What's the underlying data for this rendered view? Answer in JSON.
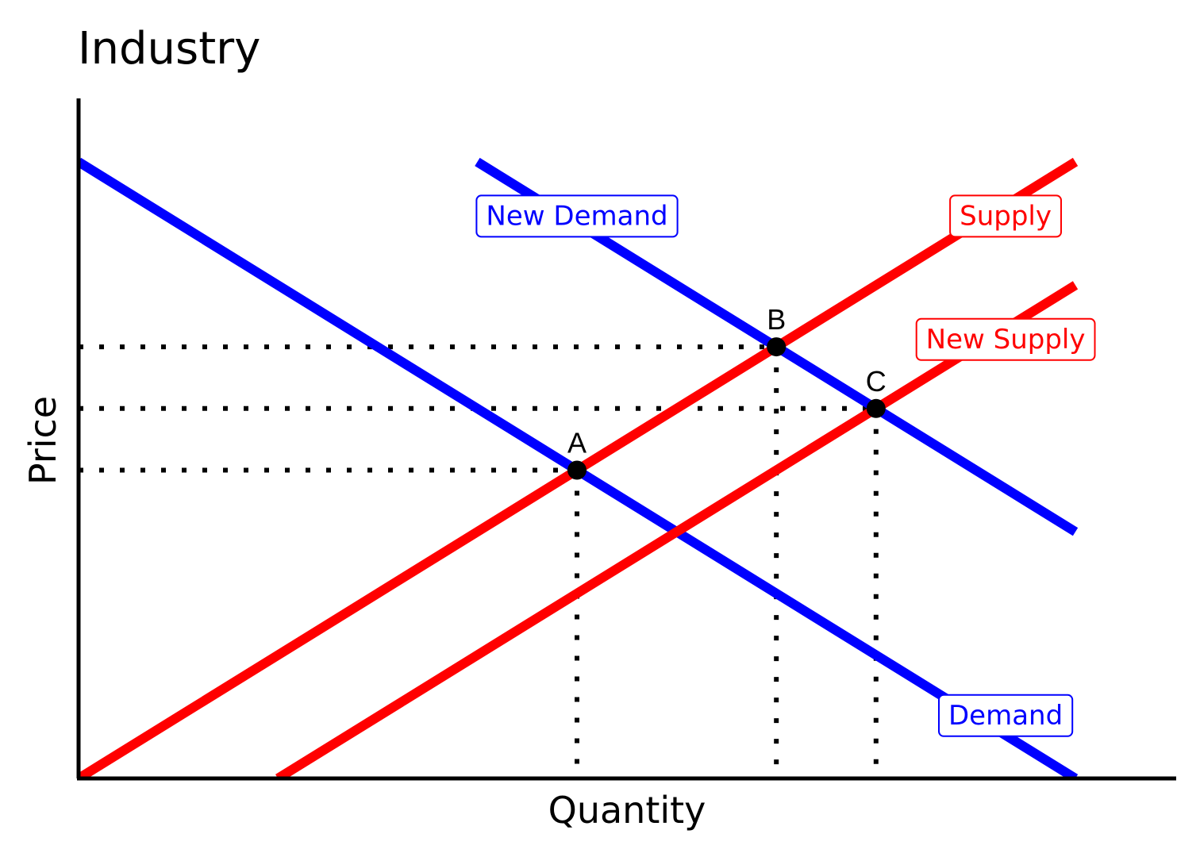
{
  "chart_data": {
    "type": "line",
    "title": "Industry",
    "xlabel": "Quantity",
    "ylabel": "Price",
    "xlim": [
      0,
      11
    ],
    "ylim": [
      0,
      10
    ],
    "grid": false,
    "ticks": "none",
    "series": [
      {
        "name": "Demand",
        "color": "#0000ff",
        "x": [
          0,
          10
        ],
        "y": [
          10,
          0
        ]
      },
      {
        "name": "New Demand",
        "color": "#0000ff",
        "x": [
          4,
          10
        ],
        "y": [
          10,
          4
        ]
      },
      {
        "name": "Supply",
        "color": "#ff0000",
        "x": [
          0,
          10
        ],
        "y": [
          0,
          10
        ]
      },
      {
        "name": "New Supply",
        "color": "#ff0000",
        "x": [
          2,
          10
        ],
        "y": [
          0,
          8
        ]
      }
    ],
    "points": [
      {
        "label": "A",
        "x": 5,
        "y": 5
      },
      {
        "label": "B",
        "x": 7,
        "y": 7
      },
      {
        "label": "C",
        "x": 8,
        "y": 6
      }
    ]
  }
}
